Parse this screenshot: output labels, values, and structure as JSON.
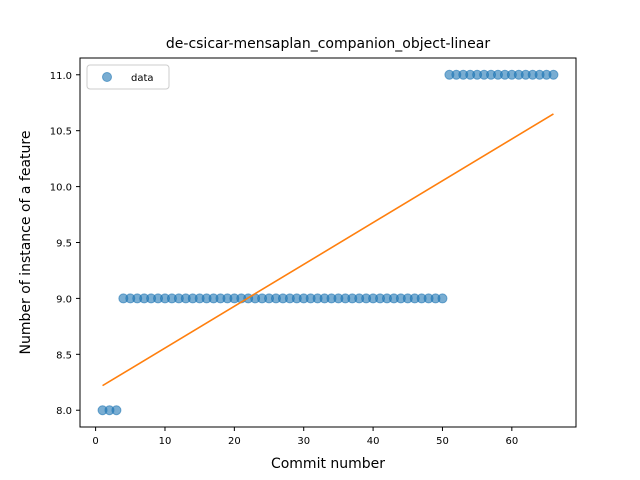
{
  "chart_data": {
    "type": "scatter",
    "title": "de-csicar-mensaplan_companion_object-linear",
    "xlabel": "Commit number",
    "ylabel": "Number of instance of a feature",
    "xlim": [
      -2.25,
      69.25
    ],
    "ylim": [
      7.85,
      11.15
    ],
    "xticks": [
      0,
      10,
      20,
      30,
      40,
      50,
      60
    ],
    "yticks": [
      8.0,
      8.5,
      9.0,
      9.5,
      10.0,
      10.5,
      11.0
    ],
    "ytick_labels": [
      "8.0",
      "8.5",
      "9.0",
      "9.5",
      "10.0",
      "10.5",
      "11.0"
    ],
    "legend": {
      "position": "top-left",
      "entries": [
        "data"
      ]
    },
    "grid": false,
    "series": [
      {
        "name": "data",
        "kind": "scatter",
        "color": "#1f77b4",
        "x": [
          1,
          2,
          3,
          4,
          5,
          6,
          7,
          8,
          9,
          10,
          11,
          12,
          13,
          14,
          15,
          16,
          17,
          18,
          19,
          20,
          21,
          22,
          23,
          24,
          25,
          26,
          27,
          28,
          29,
          30,
          31,
          32,
          33,
          34,
          35,
          36,
          37,
          38,
          39,
          40,
          41,
          42,
          43,
          44,
          45,
          46,
          47,
          48,
          49,
          50,
          51,
          52,
          53,
          54,
          55,
          56,
          57,
          58,
          59,
          60,
          61,
          62,
          63,
          64,
          65,
          66
        ],
        "y": [
          8,
          8,
          8,
          9,
          9,
          9,
          9,
          9,
          9,
          9,
          9,
          9,
          9,
          9,
          9,
          9,
          9,
          9,
          9,
          9,
          9,
          9,
          9,
          9,
          9,
          9,
          9,
          9,
          9,
          9,
          9,
          9,
          9,
          9,
          9,
          9,
          9,
          9,
          9,
          9,
          9,
          9,
          9,
          9,
          9,
          9,
          9,
          9,
          9,
          9,
          11,
          11,
          11,
          11,
          11,
          11,
          11,
          11,
          11,
          11,
          11,
          11,
          11,
          11,
          11,
          11
        ]
      },
      {
        "kind": "line",
        "color": "#ff7f0e",
        "x": [
          1,
          66
        ],
        "y": [
          8.22,
          10.65
        ]
      }
    ]
  }
}
